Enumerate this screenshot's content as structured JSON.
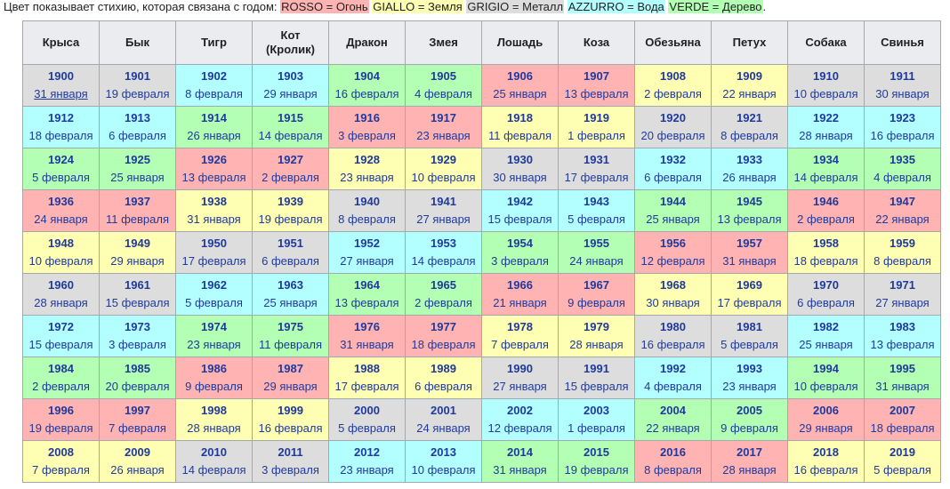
{
  "legend": {
    "prefix": "Цвет показывает стихию, которая связана с годом: ",
    "items": [
      {
        "key": "R",
        "label": "ROSSO = Огонь",
        "color": "#ffb3b3"
      },
      {
        "key": "Y",
        "label": "GIALLO = Земля",
        "color": "#ffffb3"
      },
      {
        "key": "G",
        "label": "GRIGIO = Металл",
        "color": "#dddddd"
      },
      {
        "key": "B",
        "label": "AZZURRO = Вода",
        "color": "#b3ffff"
      },
      {
        "key": "V",
        "label": "VERDE = Дерево",
        "color": "#b3ffb3"
      }
    ],
    "suffix": "."
  },
  "headers": [
    "Крыса",
    "Бык",
    "Тигр",
    "Кот\n(Кролик)",
    "Дракон",
    "Змея",
    "Лошадь",
    "Коза",
    "Обезьяна",
    "Петух",
    "Собака",
    "Свинья"
  ],
  "rows": [
    [
      [
        "1900",
        "31 января",
        "G"
      ],
      [
        "1901",
        "19 февраля",
        "G"
      ],
      [
        "1902",
        "8 февраля",
        "B"
      ],
      [
        "1903",
        "29 января",
        "B"
      ],
      [
        "1904",
        "16 февраля",
        "V"
      ],
      [
        "1905",
        "4 февраля",
        "V"
      ],
      [
        "1906",
        "25 января",
        "R"
      ],
      [
        "1907",
        "13 февраля",
        "R"
      ],
      [
        "1908",
        "2 февраля",
        "Y"
      ],
      [
        "1909",
        "22 января",
        "Y"
      ],
      [
        "1910",
        "10 февраля",
        "G"
      ],
      [
        "1911",
        "30 января",
        "G"
      ]
    ],
    [
      [
        "1912",
        "18 февраля",
        "B"
      ],
      [
        "1913",
        "6 февраля",
        "B"
      ],
      [
        "1914",
        "26 января",
        "V"
      ],
      [
        "1915",
        "14 февраля",
        "V"
      ],
      [
        "1916",
        "3 февраля",
        "R"
      ],
      [
        "1917",
        "23 января",
        "R"
      ],
      [
        "1918",
        "11 февраля",
        "Y"
      ],
      [
        "1919",
        "1 февраля",
        "Y"
      ],
      [
        "1920",
        "20 февраля",
        "G"
      ],
      [
        "1921",
        "8 февраля",
        "G"
      ],
      [
        "1922",
        "28 января",
        "B"
      ],
      [
        "1923",
        "16 февраля",
        "B"
      ]
    ],
    [
      [
        "1924",
        "5 февраля",
        "V"
      ],
      [
        "1925",
        "25 января",
        "V"
      ],
      [
        "1926",
        "13 февраля",
        "R"
      ],
      [
        "1927",
        "2 февраля",
        "R"
      ],
      [
        "1928",
        "23 января",
        "Y"
      ],
      [
        "1929",
        "10 февраля",
        "Y"
      ],
      [
        "1930",
        "30 января",
        "G"
      ],
      [
        "1931",
        "17 февраля",
        "G"
      ],
      [
        "1932",
        "6 февраля",
        "B"
      ],
      [
        "1933",
        "26 января",
        "B"
      ],
      [
        "1934",
        "14 февраля",
        "V"
      ],
      [
        "1935",
        "4 февраля",
        "V"
      ]
    ],
    [
      [
        "1936",
        "24 января",
        "R"
      ],
      [
        "1937",
        "11 февраля",
        "R"
      ],
      [
        "1938",
        "31 января",
        "Y"
      ],
      [
        "1939",
        "19 февраля",
        "Y"
      ],
      [
        "1940",
        "8 февраля",
        "G"
      ],
      [
        "1941",
        "27 января",
        "G"
      ],
      [
        "1942",
        "15 февраля",
        "B"
      ],
      [
        "1943",
        "5 февраля",
        "B"
      ],
      [
        "1944",
        "25 января",
        "V"
      ],
      [
        "1945",
        "13 февраля",
        "V"
      ],
      [
        "1946",
        "2 февраля",
        "R"
      ],
      [
        "1947",
        "22 января",
        "R"
      ]
    ],
    [
      [
        "1948",
        "10 февраля",
        "Y"
      ],
      [
        "1949",
        "29 января",
        "Y"
      ],
      [
        "1950",
        "17 февраля",
        "G"
      ],
      [
        "1951",
        "6 февраля",
        "G"
      ],
      [
        "1952",
        "27 января",
        "B"
      ],
      [
        "1953",
        "14 февраля",
        "B"
      ],
      [
        "1954",
        "3 февраля",
        "V"
      ],
      [
        "1955",
        "24 января",
        "V"
      ],
      [
        "1956",
        "12 февраля",
        "R"
      ],
      [
        "1957",
        "31 января",
        "R"
      ],
      [
        "1958",
        "18 февраля",
        "Y"
      ],
      [
        "1959",
        "8 февраля",
        "Y"
      ]
    ],
    [
      [
        "1960",
        "28 января",
        "G"
      ],
      [
        "1961",
        "15 февраля",
        "G"
      ],
      [
        "1962",
        "5 февраля",
        "B"
      ],
      [
        "1963",
        "25 января",
        "B"
      ],
      [
        "1964",
        "13 февраля",
        "V"
      ],
      [
        "1965",
        "2 февраля",
        "V"
      ],
      [
        "1966",
        "21 января",
        "R"
      ],
      [
        "1967",
        "9 февраля",
        "R"
      ],
      [
        "1968",
        "30 января",
        "Y"
      ],
      [
        "1969",
        "17 февраля",
        "Y"
      ],
      [
        "1970",
        "6 февраля",
        "G"
      ],
      [
        "1971",
        "27 января",
        "G"
      ]
    ],
    [
      [
        "1972",
        "15 февраля",
        "B"
      ],
      [
        "1973",
        "3 февраля",
        "B"
      ],
      [
        "1974",
        "23 января",
        "V"
      ],
      [
        "1975",
        "11 февраля",
        "V"
      ],
      [
        "1976",
        "31 января",
        "R"
      ],
      [
        "1977",
        "18 февраля",
        "R"
      ],
      [
        "1978",
        "7 февраля",
        "Y"
      ],
      [
        "1979",
        "28 января",
        "Y"
      ],
      [
        "1980",
        "16 февраля",
        "G"
      ],
      [
        "1981",
        "5 февраля",
        "G"
      ],
      [
        "1982",
        "25 января",
        "B"
      ],
      [
        "1983",
        "13 февраля",
        "B"
      ]
    ],
    [
      [
        "1984",
        "2 февраля",
        "V"
      ],
      [
        "1985",
        "20 февраля",
        "V"
      ],
      [
        "1986",
        "9 февраля",
        "R"
      ],
      [
        "1987",
        "29 января",
        "R"
      ],
      [
        "1988",
        "17 февраля",
        "Y"
      ],
      [
        "1989",
        "6 февраля",
        "Y"
      ],
      [
        "1990",
        "27 января",
        "G"
      ],
      [
        "1991",
        "15 февраля",
        "G"
      ],
      [
        "1992",
        "4 февраля",
        "B"
      ],
      [
        "1993",
        "23 января",
        "B"
      ],
      [
        "1994",
        "10 февраля",
        "V"
      ],
      [
        "1995",
        "31 января",
        "V"
      ]
    ],
    [
      [
        "1996",
        "19 февраля",
        "R"
      ],
      [
        "1997",
        "7 февраля",
        "R"
      ],
      [
        "1998",
        "28 января",
        "Y"
      ],
      [
        "1999",
        "16 февраля",
        "Y"
      ],
      [
        "2000",
        "5 февраля",
        "G"
      ],
      [
        "2001",
        "24 января",
        "G"
      ],
      [
        "2002",
        "12 февраля",
        "B"
      ],
      [
        "2003",
        "1 февраля",
        "B"
      ],
      [
        "2004",
        "22 января",
        "V"
      ],
      [
        "2005",
        "9 февраля",
        "V"
      ],
      [
        "2006",
        "29 января",
        "R"
      ],
      [
        "2007",
        "18 февраля",
        "R"
      ]
    ],
    [
      [
        "2008",
        "7 февраля",
        "Y"
      ],
      [
        "2009",
        "26 января",
        "Y"
      ],
      [
        "2010",
        "14 февраля",
        "G"
      ],
      [
        "2011",
        "3 февраля",
        "G"
      ],
      [
        "2012",
        "23 января",
        "B"
      ],
      [
        "2013",
        "10 февраля",
        "B"
      ],
      [
        "2014",
        "31 января",
        "V"
      ],
      [
        "2015",
        "19 февраля",
        "V"
      ],
      [
        "2016",
        "8 февраля",
        "R"
      ],
      [
        "2017",
        "28 января",
        "R"
      ],
      [
        "2018",
        "16 февраля",
        "Y"
      ],
      [
        "2019",
        "5 февраля",
        "Y"
      ]
    ]
  ]
}
